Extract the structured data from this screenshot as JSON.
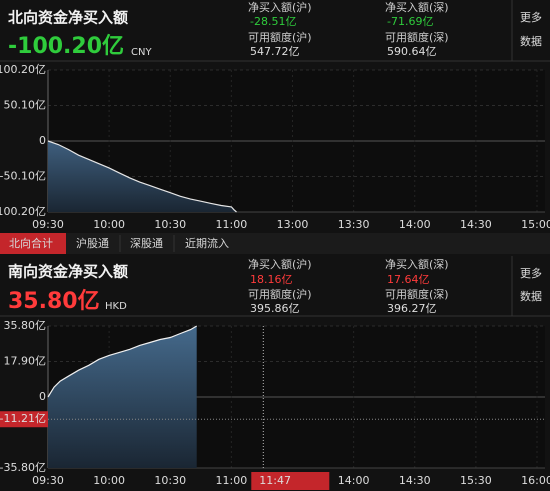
{
  "north": {
    "title": "北向资金净买入额",
    "total": "-100.20亿",
    "currency": "CNY",
    "stats": [
      [
        "净买入额(沪)",
        "-28.51亿",
        "可用额度(沪)",
        "547.72亿"
      ],
      [
        "净买入额(深)",
        "-71.69亿",
        "可用额度(深)",
        "590.64亿"
      ]
    ],
    "more": [
      "更多",
      "数据"
    ]
  },
  "tabs": [
    "北向合计",
    "沪股通",
    "深股通",
    "近期流入"
  ],
  "south": {
    "title": "南向资金净买入额",
    "total": "35.80亿",
    "currency": "HKD",
    "stats": [
      [
        "净买入额(沪)",
        "18.16亿",
        "可用额度(沪)",
        "395.86亿"
      ],
      [
        "净买入额(深)",
        "17.64亿",
        "可用额度(深)",
        "396.27亿"
      ]
    ],
    "more": [
      "更多",
      "数据"
    ]
  },
  "chart_data": [
    {
      "type": "area",
      "color": "#e6e6e6",
      "x": [
        "09:30",
        "09:35",
        "09:40",
        "09:45",
        "09:50",
        "09:55",
        "10:00",
        "10:05",
        "10:10",
        "10:15",
        "10:20",
        "10:25",
        "10:30",
        "10:35",
        "10:40",
        "10:45",
        "10:50",
        "10:55",
        "11:00",
        "11:05",
        "11:10"
      ],
      "values": [
        0,
        -5,
        -12,
        -20,
        -26,
        -32,
        -38,
        -45,
        -52,
        -58,
        -63,
        -68,
        -73,
        -78,
        -82,
        -85,
        -88,
        -91,
        -93,
        -97,
        -100.2
      ],
      "ylim": [
        -100.2,
        100.2
      ],
      "yticks": [
        {
          "value": 100.2,
          "label": "100.20亿"
        },
        {
          "value": 50.1,
          "label": "50.10亿"
        },
        0,
        {
          "value": -50.1,
          "label": "-50.10亿"
        },
        {
          "value": -100.2,
          "label": "-100.20亿"
        }
      ],
      "xticks": [
        "09:30",
        "10:00",
        "10:30",
        "11:00",
        "13:00",
        "13:30",
        "14:00",
        "14:30",
        "15:00"
      ],
      "grid": true
    },
    {
      "type": "area",
      "color": "#f0f0f0",
      "x": [
        "09:30",
        "09:33",
        "09:36",
        "09:40",
        "09:45",
        "09:50",
        "09:55",
        "10:00",
        "10:05",
        "10:10",
        "10:15",
        "10:20",
        "10:25",
        "10:30",
        "10:35",
        "10:40",
        "10:43"
      ],
      "values": [
        0,
        5,
        8,
        10.5,
        13.5,
        16,
        19,
        21,
        22.5,
        24,
        26,
        27.5,
        29,
        30,
        32,
        34,
        35.8
      ],
      "ylim": [
        -35.8,
        35.8
      ],
      "yticks": [
        {
          "value": 35.8,
          "label": "35.80亿"
        },
        {
          "value": 17.9,
          "label": "17.90亿"
        },
        0,
        {
          "value": -35.8,
          "label": "-35.80亿"
        }
      ],
      "xticks": [
        "09:30",
        "10:00",
        "10:30",
        "11:00",
        null,
        "14:00",
        "14:30",
        "15:30",
        "16:00"
      ],
      "grid": true,
      "cursor": {
        "x": "11:47",
        "y": {
          "value": -11.21,
          "label": "-11.21亿"
        }
      }
    }
  ]
}
